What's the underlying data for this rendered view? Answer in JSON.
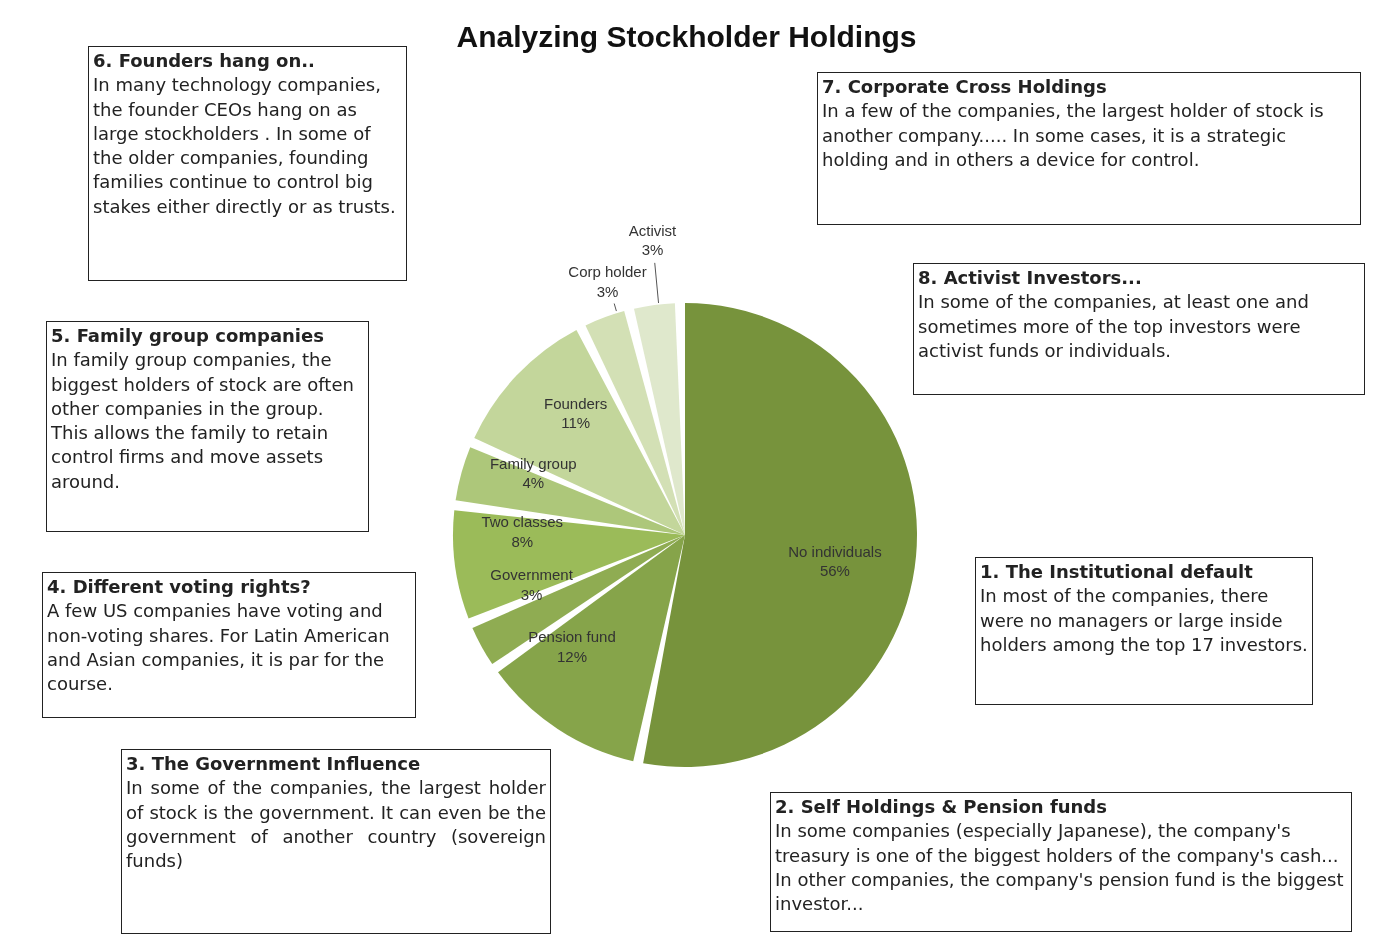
{
  "chart_data": {
    "type": "pie",
    "title": "Analyzing Stockholder Holdings",
    "categories": [
      "No individuals",
      "Pension fund",
      "Government",
      "Two classes",
      "Family group",
      "Founders",
      "Corp holder",
      "Activist"
    ],
    "values": [
      56,
      12,
      3,
      8,
      4,
      11,
      3,
      3
    ],
    "value_labels": [
      "56%",
      "12%",
      "3%",
      "8%",
      "4%",
      "11%",
      "3%",
      "3%"
    ],
    "colors": [
      "#77933c",
      "#86a44a",
      "#8fac52",
      "#9bbb59",
      "#adc77a",
      "#c3d69b",
      "#d3e0b5",
      "#dfe8cc"
    ],
    "annotations": [
      "1. The Institutional default\nIn most of the companies, there were no managers or large inside holders among the top 17 investors.",
      "2. Self Holdings & Pension funds\nIn some companies (especially Japanese), the company's treasury is one of the biggest holders of the company's cash... In other companies, the company's pension fund is the biggest investor...",
      "3. The Government Influence\nIn some of the companies, the largest holder of stock is the government. It can even be the government of another country (sovereign funds)",
      "4. Different voting rights?\nA few US companies have voting and non-voting shares. For Latin American and Asian companies, it is par for the course.",
      "5. Family group companies\nIn family group companies, the biggest holders of stock are often other companies in the group. This allows the family to retain control firms and move assets around.",
      "6. Founders hang on..\nIn many technology companies, the founder CEOs hang on as large stockholders . In some of the older companies, founding families continue to control big stakes either directly or as trusts.",
      "7. Corporate Cross Holdings\nIn a few of the companies, the largest holder of stock is another company..... In some cases, it is a strategic holding and in others a device for control.",
      "8. Activist Investors...\nIn some of the companies, at least one and sometimes more of the top investors were activist funds or individuals."
    ]
  }
}
